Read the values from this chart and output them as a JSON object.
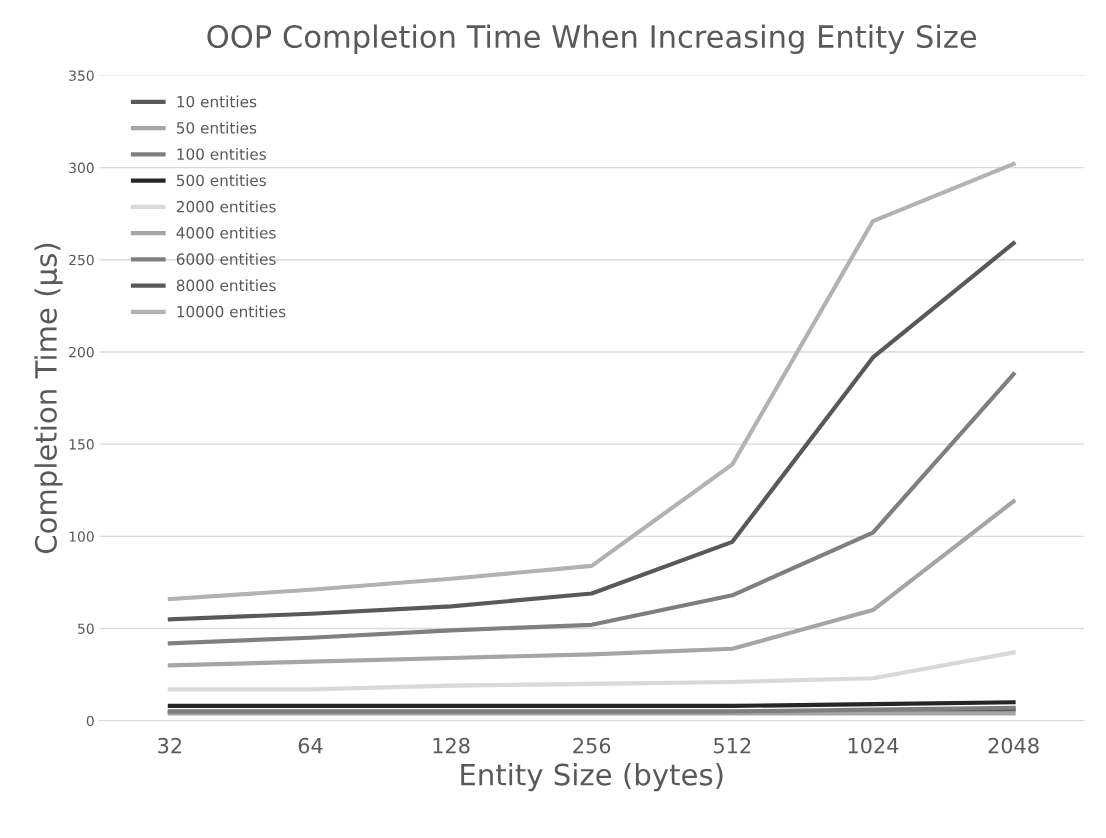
{
  "chart_data": {
    "type": "line",
    "title": "OOP Completion Time When Increasing Entity Size",
    "xlabel": "Entity Size (bytes)",
    "ylabel": "Completion Time (µs)",
    "categories": [
      "32",
      "64",
      "128",
      "256",
      "512",
      "1024",
      "2048"
    ],
    "series": [
      {
        "name": "10 entities",
        "color": "#595959",
        "values": [
          5,
          5,
          5,
          5,
          5,
          5,
          6
        ]
      },
      {
        "name": "50 entities",
        "color": "#a5a5a5",
        "values": [
          4,
          4,
          4,
          4,
          4,
          4,
          4
        ]
      },
      {
        "name": "100 entities",
        "color": "#7f7f7f",
        "values": [
          5,
          5,
          5,
          5,
          5,
          6,
          7
        ]
      },
      {
        "name": "500 entities",
        "color": "#262626",
        "values": [
          8,
          8,
          8,
          8,
          8,
          9,
          10
        ]
      },
      {
        "name": "2000 entities",
        "color": "#d9d9d9",
        "values": [
          17,
          17,
          19,
          20,
          21,
          23,
          37
        ]
      },
      {
        "name": "4000 entities",
        "color": "#a5a5a5",
        "values": [
          30,
          32,
          34,
          36,
          39,
          60,
          119
        ]
      },
      {
        "name": "6000 entities",
        "color": "#7f7f7f",
        "values": [
          42,
          45,
          49,
          52,
          68,
          102,
          188
        ]
      },
      {
        "name": "8000 entities",
        "color": "#595959",
        "values": [
          55,
          58,
          62,
          69,
          97,
          197,
          259
        ]
      },
      {
        "name": "10000 entities",
        "color": "#b2b2b2",
        "values": [
          66,
          71,
          77,
          84,
          139,
          271,
          302
        ]
      }
    ],
    "ylim": [
      0,
      350
    ],
    "yticks": [
      0,
      50,
      100,
      150,
      200,
      250,
      300,
      350
    ],
    "grid": "y",
    "legend": "top left",
    "marker": "none",
    "line_style": "solid"
  }
}
